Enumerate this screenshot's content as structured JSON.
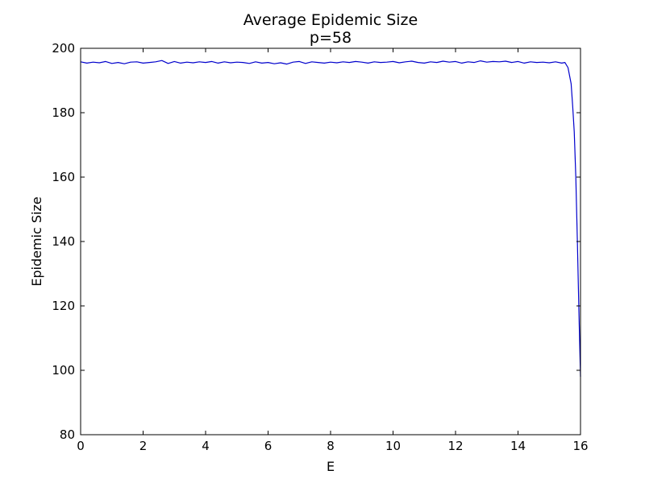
{
  "chart_data": {
    "type": "line",
    "title": "Average Epidemic Size",
    "subtitle": "p=58",
    "xlabel": "E",
    "ylabel": "Epidemic Size",
    "xlim": [
      0,
      16
    ],
    "ylim": [
      80,
      200
    ],
    "xticks": [
      0,
      2,
      4,
      6,
      8,
      10,
      12,
      14,
      16
    ],
    "yticks": [
      80,
      100,
      120,
      140,
      160,
      180,
      200
    ],
    "grid": false,
    "legend": "none",
    "series": [
      {
        "color": "#0000cc",
        "x": [
          0,
          0.2,
          0.4,
          0.6,
          0.8,
          1.0,
          1.2,
          1.4,
          1.6,
          1.8,
          2.0,
          2.2,
          2.4,
          2.6,
          2.8,
          3.0,
          3.2,
          3.4,
          3.6,
          3.8,
          4.0,
          4.2,
          4.4,
          4.6,
          4.8,
          5.0,
          5.2,
          5.4,
          5.6,
          5.8,
          6.0,
          6.2,
          6.4,
          6.6,
          6.8,
          7.0,
          7.2,
          7.4,
          7.6,
          7.8,
          8.0,
          8.2,
          8.4,
          8.6,
          8.8,
          9.0,
          9.2,
          9.4,
          9.6,
          9.8,
          10.0,
          10.2,
          10.4,
          10.6,
          10.8,
          11.0,
          11.2,
          11.4,
          11.6,
          11.8,
          12.0,
          12.2,
          12.4,
          12.6,
          12.8,
          13.0,
          13.2,
          13.4,
          13.6,
          13.8,
          14.0,
          14.2,
          14.4,
          14.6,
          14.8,
          15.0,
          15.2,
          15.4,
          15.5,
          15.6,
          15.7,
          15.75,
          15.8,
          15.85,
          15.9,
          15.95,
          16.0
        ],
        "y": [
          195.8,
          195.4,
          195.7,
          195.5,
          195.9,
          195.3,
          195.6,
          195.2,
          195.7,
          195.8,
          195.4,
          195.6,
          195.8,
          196.2,
          195.3,
          195.9,
          195.4,
          195.7,
          195.5,
          195.8,
          195.6,
          195.9,
          195.4,
          195.8,
          195.5,
          195.7,
          195.6,
          195.3,
          195.8,
          195.4,
          195.6,
          195.2,
          195.5,
          195.1,
          195.7,
          195.9,
          195.3,
          195.8,
          195.6,
          195.4,
          195.7,
          195.5,
          195.8,
          195.6,
          195.9,
          195.7,
          195.4,
          195.8,
          195.6,
          195.7,
          195.9,
          195.5,
          195.8,
          196.0,
          195.6,
          195.4,
          195.8,
          195.6,
          196.0,
          195.7,
          195.9,
          195.4,
          195.8,
          195.6,
          196.1,
          195.7,
          195.9,
          195.8,
          196.0,
          195.6,
          195.9,
          195.4,
          195.8,
          195.6,
          195.7,
          195.5,
          195.8,
          195.4,
          195.6,
          194.0,
          189.0,
          182.0,
          174.0,
          160.0,
          140.0,
          118.0,
          98.0
        ]
      }
    ]
  }
}
